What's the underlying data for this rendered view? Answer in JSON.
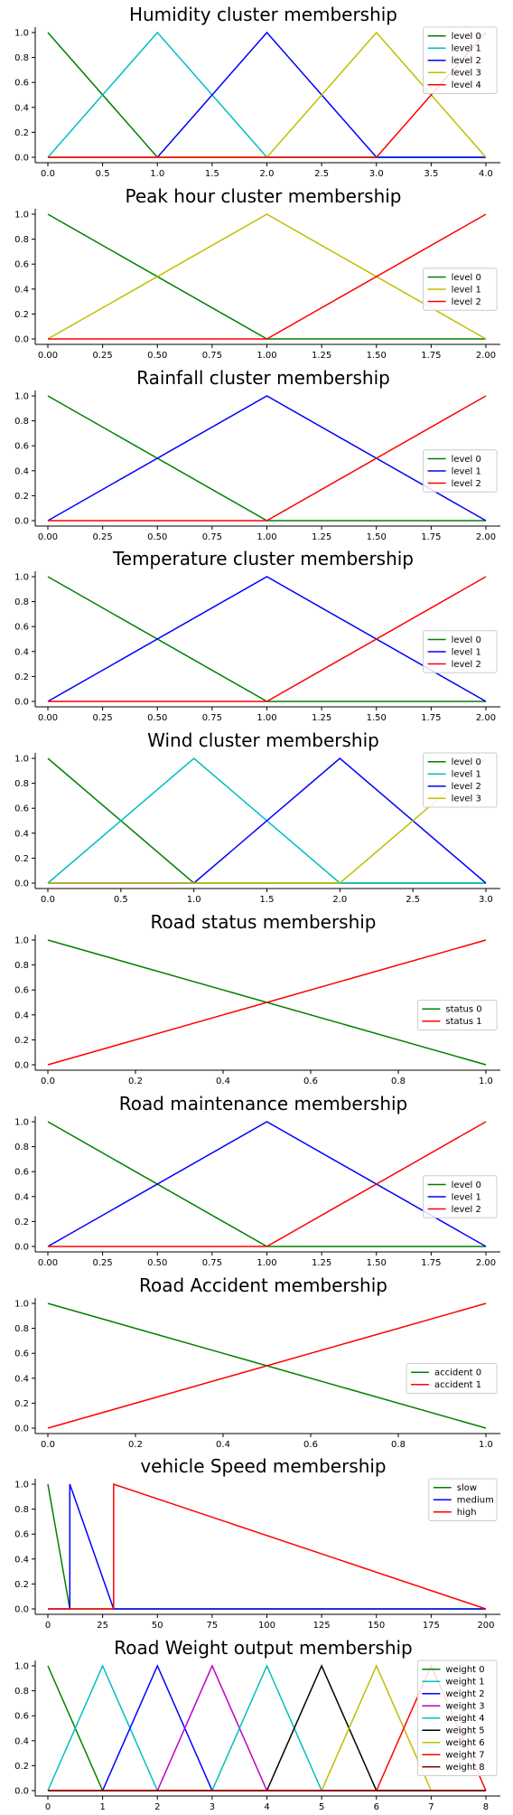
{
  "chart_data": [
    {
      "type": "line",
      "title": "Humidity cluster membership",
      "xlim": [
        0,
        4
      ],
      "ylim": [
        0,
        1
      ],
      "xticks": [
        "0.0",
        "0.5",
        "1.0",
        "1.5",
        "2.0",
        "2.5",
        "3.0",
        "3.5",
        "4.0"
      ],
      "yticks": [
        "0.0",
        "0.2",
        "0.4",
        "0.6",
        "0.8",
        "1.0"
      ],
      "legend_position": "upper-right",
      "series": [
        {
          "name": "level 0",
          "color": "#008000",
          "x": [
            0,
            1,
            4
          ],
          "y": [
            1,
            0,
            0
          ]
        },
        {
          "name": "level 1",
          "color": "#00bfbf",
          "x": [
            0,
            1,
            2,
            4
          ],
          "y": [
            0,
            1,
            0,
            0
          ]
        },
        {
          "name": "level 2",
          "color": "#0000ff",
          "x": [
            0,
            1,
            2,
            3,
            4
          ],
          "y": [
            0,
            0,
            1,
            0,
            0
          ]
        },
        {
          "name": "level 3",
          "color": "#bfbf00",
          "x": [
            0,
            2,
            3,
            4
          ],
          "y": [
            0,
            0,
            1,
            0
          ]
        },
        {
          "name": "level 4",
          "color": "#ff0000",
          "x": [
            0,
            3,
            4
          ],
          "y": [
            0,
            0,
            1
          ]
        }
      ]
    },
    {
      "type": "line",
      "title": "Peak hour cluster membership",
      "xlim": [
        0,
        2
      ],
      "ylim": [
        0,
        1
      ],
      "xticks": [
        "0.00",
        "0.25",
        "0.50",
        "0.75",
        "1.00",
        "1.25",
        "1.50",
        "1.75",
        "2.00"
      ],
      "yticks": [
        "0.0",
        "0.2",
        "0.4",
        "0.6",
        "0.8",
        "1.0"
      ],
      "legend_position": "center-right",
      "series": [
        {
          "name": "level 0",
          "color": "#008000",
          "x": [
            0,
            1,
            2
          ],
          "y": [
            1,
            0,
            0
          ]
        },
        {
          "name": "level 1",
          "color": "#bfbf00",
          "x": [
            0,
            1,
            2
          ],
          "y": [
            0,
            1,
            0
          ]
        },
        {
          "name": "level 2",
          "color": "#ff0000",
          "x": [
            0,
            1,
            2
          ],
          "y": [
            0,
            0,
            1
          ]
        }
      ]
    },
    {
      "type": "line",
      "title": "Rainfall cluster membership",
      "xlim": [
        0,
        2
      ],
      "ylim": [
        0,
        1
      ],
      "xticks": [
        "0.00",
        "0.25",
        "0.50",
        "0.75",
        "1.00",
        "1.25",
        "1.50",
        "1.75",
        "2.00"
      ],
      "yticks": [
        "0.0",
        "0.2",
        "0.4",
        "0.6",
        "0.8",
        "1.0"
      ],
      "legend_position": "center-right",
      "series": [
        {
          "name": "level 0",
          "color": "#008000",
          "x": [
            0,
            1,
            2
          ],
          "y": [
            1,
            0,
            0
          ]
        },
        {
          "name": "level 1",
          "color": "#0000ff",
          "x": [
            0,
            1,
            2
          ],
          "y": [
            0,
            1,
            0
          ]
        },
        {
          "name": "level 2",
          "color": "#ff0000",
          "x": [
            0,
            1,
            2
          ],
          "y": [
            0,
            0,
            1
          ]
        }
      ]
    },
    {
      "type": "line",
      "title": "Temperature cluster membership",
      "xlim": [
        0,
        2
      ],
      "ylim": [
        0,
        1
      ],
      "xticks": [
        "0.00",
        "0.25",
        "0.50",
        "0.75",
        "1.00",
        "1.25",
        "1.50",
        "1.75",
        "2.00"
      ],
      "yticks": [
        "0.0",
        "0.2",
        "0.4",
        "0.6",
        "0.8",
        "1.0"
      ],
      "legend_position": "center-right",
      "series": [
        {
          "name": "level 0",
          "color": "#008000",
          "x": [
            0,
            1,
            2
          ],
          "y": [
            1,
            0,
            0
          ]
        },
        {
          "name": "level 1",
          "color": "#0000ff",
          "x": [
            0,
            1,
            2
          ],
          "y": [
            0,
            1,
            0
          ]
        },
        {
          "name": "level 2",
          "color": "#ff0000",
          "x": [
            0,
            1,
            2
          ],
          "y": [
            0,
            0,
            1
          ]
        }
      ]
    },
    {
      "type": "line",
      "title": "Wind cluster membership",
      "xlim": [
        0,
        3
      ],
      "ylim": [
        0,
        1
      ],
      "xticks": [
        "0.0",
        "0.5",
        "1.0",
        "1.5",
        "2.0",
        "2.5",
        "3.0"
      ],
      "yticks": [
        "0.0",
        "0.2",
        "0.4",
        "0.6",
        "0.8",
        "1.0"
      ],
      "legend_position": "upper-right",
      "series": [
        {
          "name": "level 0",
          "color": "#008000",
          "x": [
            0,
            1,
            3
          ],
          "y": [
            1,
            0,
            0
          ]
        },
        {
          "name": "level 1",
          "color": "#00bfbf",
          "x": [
            0,
            1,
            2,
            3
          ],
          "y": [
            0,
            1,
            0,
            0
          ]
        },
        {
          "name": "level 2",
          "color": "#0000ff",
          "x": [
            0,
            1,
            2,
            3
          ],
          "y": [
            0,
            0,
            1,
            0
          ]
        },
        {
          "name": "level 3",
          "color": "#bfbf00",
          "x": [
            0,
            2,
            3
          ],
          "y": [
            0,
            0,
            1
          ]
        }
      ]
    },
    {
      "type": "line",
      "title": "Road status membership",
      "xlim": [
        0,
        1
      ],
      "ylim": [
        0,
        1
      ],
      "xticks": [
        "0.0",
        "0.2",
        "0.4",
        "0.6",
        "0.8",
        "1.0"
      ],
      "yticks": [
        "0.0",
        "0.2",
        "0.4",
        "0.6",
        "0.8",
        "1.0"
      ],
      "legend_position": "center-right",
      "series": [
        {
          "name": "status 0",
          "color": "#008000",
          "x": [
            0,
            1
          ],
          "y": [
            1,
            0
          ]
        },
        {
          "name": "status 1",
          "color": "#ff0000",
          "x": [
            0,
            1
          ],
          "y": [
            0,
            1
          ]
        }
      ]
    },
    {
      "type": "line",
      "title": "Road maintenance membership",
      "xlim": [
        0,
        2
      ],
      "ylim": [
        0,
        1
      ],
      "xticks": [
        "0.00",
        "0.25",
        "0.50",
        "0.75",
        "1.00",
        "1.25",
        "1.50",
        "1.75",
        "2.00"
      ],
      "yticks": [
        "0.0",
        "0.2",
        "0.4",
        "0.6",
        "0.8",
        "1.0"
      ],
      "legend_position": "center-right",
      "series": [
        {
          "name": "level 0",
          "color": "#008000",
          "x": [
            0,
            1,
            2
          ],
          "y": [
            1,
            0,
            0
          ]
        },
        {
          "name": "level 1",
          "color": "#0000ff",
          "x": [
            0,
            1,
            2
          ],
          "y": [
            0,
            1,
            0
          ]
        },
        {
          "name": "level 2",
          "color": "#ff0000",
          "x": [
            0,
            1,
            2
          ],
          "y": [
            0,
            0,
            1
          ]
        }
      ]
    },
    {
      "type": "line",
      "title": "Road Accident membership",
      "xlim": [
        0,
        1
      ],
      "ylim": [
        0,
        1
      ],
      "xticks": [
        "0.0",
        "0.2",
        "0.4",
        "0.6",
        "0.8",
        "1.0"
      ],
      "yticks": [
        "0.0",
        "0.2",
        "0.4",
        "0.6",
        "0.8",
        "1.0"
      ],
      "legend_position": "center-right",
      "series": [
        {
          "name": "accident 0",
          "color": "#008000",
          "x": [
            0,
            1
          ],
          "y": [
            1,
            0
          ]
        },
        {
          "name": "accident 1",
          "color": "#ff0000",
          "x": [
            0,
            1
          ],
          "y": [
            0,
            1
          ]
        }
      ]
    },
    {
      "type": "line",
      "title": "vehicle Speed membership",
      "xlim": [
        0,
        200
      ],
      "ylim": [
        0,
        1
      ],
      "xticks": [
        "0",
        "25",
        "50",
        "75",
        "100",
        "125",
        "150",
        "175",
        "200"
      ],
      "yticks": [
        "0.0",
        "0.2",
        "0.4",
        "0.6",
        "0.8",
        "1.0"
      ],
      "legend_position": "upper-right",
      "series": [
        {
          "name": "slow",
          "color": "#008000",
          "x": [
            0,
            10,
            200
          ],
          "y": [
            1,
            0,
            0
          ]
        },
        {
          "name": "medium",
          "color": "#0000ff",
          "x": [
            0,
            10,
            10,
            30,
            200
          ],
          "y": [
            0,
            0,
            1,
            0,
            0
          ]
        },
        {
          "name": "high",
          "color": "#ff0000",
          "x": [
            0,
            30,
            30,
            200
          ],
          "y": [
            0,
            0,
            1,
            0
          ]
        }
      ]
    },
    {
      "type": "line",
      "title": "Road Weight output membership",
      "xlim": [
        0,
        8
      ],
      "ylim": [
        0,
        1
      ],
      "xticks": [
        "0",
        "1",
        "2",
        "3",
        "4",
        "5",
        "6",
        "7",
        "8"
      ],
      "yticks": [
        "0.0",
        "0.2",
        "0.4",
        "0.6",
        "0.8",
        "1.0"
      ],
      "legend_position": "right",
      "series": [
        {
          "name": "weight 0",
          "color": "#008000",
          "x": [
            0,
            1,
            8
          ],
          "y": [
            1,
            0,
            0
          ]
        },
        {
          "name": "weight 1",
          "color": "#00bfbf",
          "x": [
            0,
            1,
            2,
            8
          ],
          "y": [
            0,
            1,
            0,
            0
          ]
        },
        {
          "name": "weight 2",
          "color": "#0000ff",
          "x": [
            0,
            1,
            2,
            3,
            8
          ],
          "y": [
            0,
            0,
            1,
            0,
            0
          ]
        },
        {
          "name": "weight 3",
          "color": "#bf00bf",
          "x": [
            0,
            2,
            3,
            4,
            8
          ],
          "y": [
            0,
            0,
            1,
            0,
            0
          ]
        },
        {
          "name": "weight 4",
          "color": "#00bfbf",
          "x": [
            0,
            3,
            4,
            5,
            8
          ],
          "y": [
            0,
            0,
            1,
            0,
            0
          ]
        },
        {
          "name": "weight 5",
          "color": "#000000",
          "x": [
            0,
            4,
            5,
            6,
            8
          ],
          "y": [
            0,
            0,
            1,
            0,
            0
          ]
        },
        {
          "name": "weight 6",
          "color": "#bfbf00",
          "x": [
            0,
            5,
            6,
            7,
            8
          ],
          "y": [
            0,
            0,
            1,
            0,
            0
          ]
        },
        {
          "name": "weight 7",
          "color": "#ff0000",
          "x": [
            0,
            6,
            7,
            8
          ],
          "y": [
            0,
            0,
            1,
            0
          ]
        },
        {
          "name": "weight 8",
          "color": "#8b0000",
          "x": [
            0,
            7,
            8
          ],
          "y": [
            0,
            0,
            0
          ]
        }
      ]
    }
  ]
}
